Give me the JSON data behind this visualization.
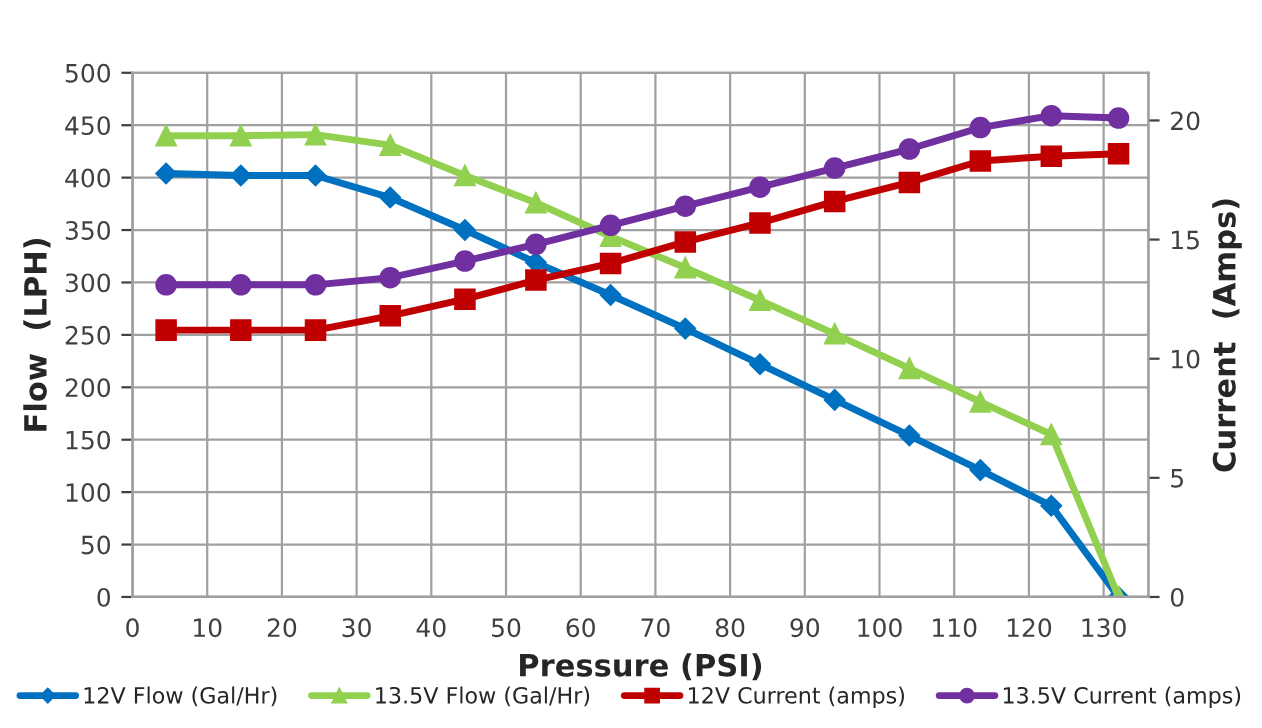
{
  "chart_data": {
    "type": "line",
    "xlabel": "Pressure (PSI)",
    "ylabel": "Flow  (LPH)",
    "y2label": "Current  (Amps)",
    "x": [
      4.5,
      14.5,
      24.5,
      34.5,
      44.5,
      54,
      64,
      74,
      84,
      94,
      104,
      113.5,
      123,
      132
    ],
    "series": [
      {
        "name": "12V Flow (Gal/Hr)",
        "color": "#0070c0",
        "marker": "diamond",
        "values": [
          404,
          402,
          402,
          381,
          350,
          319,
          288,
          256,
          222,
          188,
          154,
          121,
          87,
          0
        ]
      },
      {
        "name": "13.5V Flow (Gal/Hr)",
        "color": "#92d050",
        "marker": "triangle",
        "values": [
          440,
          440,
          441,
          431,
          402,
          376,
          344,
          314,
          283,
          251,
          218,
          186,
          155,
          0
        ]
      },
      {
        "name": "12V Current (amps)",
        "color": "#c00000",
        "marker": "square",
        "axis": "y2",
        "values": [
          11.2,
          11.2,
          11.2,
          11.8,
          12.5,
          13.3,
          14.0,
          14.9,
          15.7,
          16.6,
          17.4,
          18.3,
          18.5,
          18.6
        ]
      },
      {
        "name": "13.5V Current (amps)",
        "color": "#7030a0",
        "marker": "circle",
        "axis": "y2",
        "values": [
          13.1,
          13.1,
          13.1,
          13.4,
          14.1,
          14.8,
          15.6,
          16.4,
          17.2,
          18.0,
          18.8,
          19.7,
          20.2,
          20.1
        ]
      }
    ],
    "xlim": [
      0,
      136
    ],
    "xticks": [
      0,
      10,
      20,
      30,
      40,
      50,
      60,
      70,
      80,
      90,
      100,
      110,
      120,
      130
    ],
    "ylim": [
      0,
      500
    ],
    "yticks": [
      0,
      50,
      100,
      150,
      200,
      250,
      300,
      350,
      400,
      450,
      500
    ],
    "y2lim": [
      0,
      22
    ],
    "y2ticks": [
      0,
      5,
      10,
      15,
      20
    ],
    "grid": true,
    "legend": "bottom",
    "line_style": "solid"
  }
}
